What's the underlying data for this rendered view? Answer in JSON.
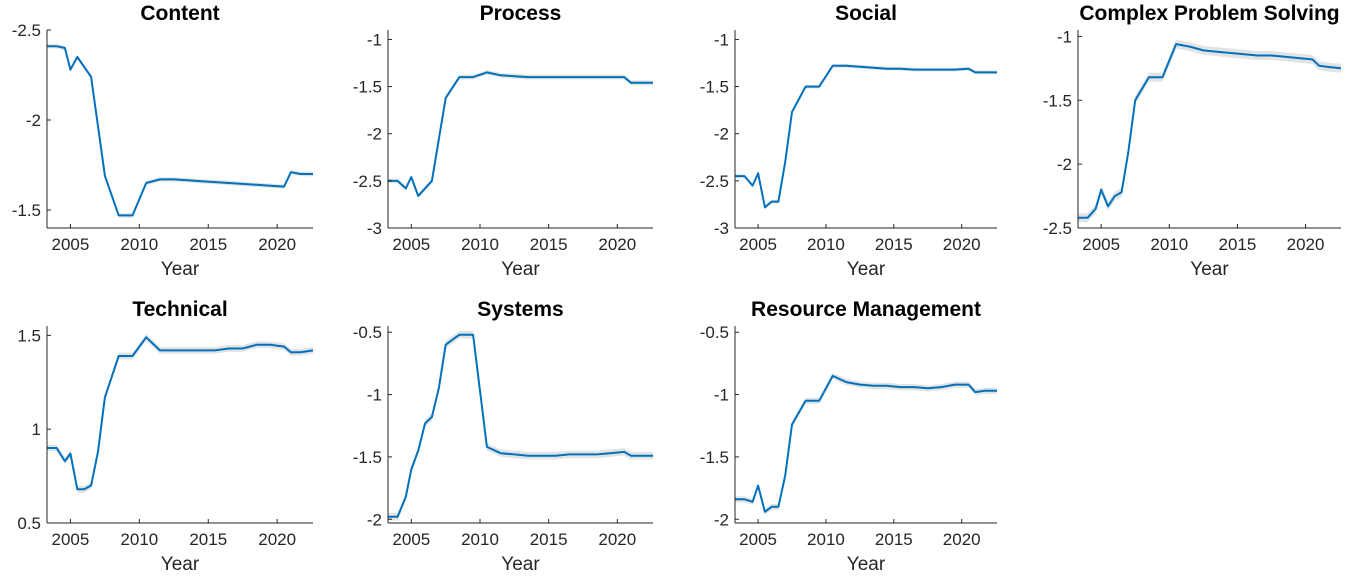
{
  "chart_data": [
    {
      "type": "line",
      "title": "Content",
      "xlabel": "Year",
      "ylabel": "",
      "ylim": [
        -2.5,
        -1.4
      ],
      "yticks": [
        -2.5,
        -2,
        -1.5
      ],
      "y_reversed": true,
      "xlim": [
        2003.3,
        2022.6
      ],
      "xticks": [
        2005,
        2010,
        2015,
        2020
      ],
      "grid": false,
      "series": [
        {
          "color": "#0072BD",
          "x": [
            2003.3,
            2004,
            2004.6,
            2005,
            2005.5,
            2006.5,
            2007.5,
            2008.5,
            2009.5,
            2010.5,
            2011.5,
            2012.5,
            2013.5,
            2014.5,
            2015.5,
            2016.5,
            2017.5,
            2018.5,
            2019.5,
            2020.5,
            2021,
            2021.7,
            2022.6
          ],
          "y": [
            -2.41,
            -2.41,
            -2.4,
            -2.28,
            -2.35,
            -2.24,
            -1.69,
            -1.47,
            -1.47,
            -1.65,
            -1.67,
            -1.67,
            -1.665,
            -1.66,
            -1.655,
            -1.65,
            -1.645,
            -1.64,
            -1.635,
            -1.63,
            -1.71,
            -1.7,
            -1.7
          ],
          "band": 0.012
        }
      ]
    },
    {
      "type": "line",
      "title": "Process",
      "xlabel": "Year",
      "ylabel": "",
      "ylim": [
        -3,
        -0.9
      ],
      "yticks": [
        -3,
        -2.5,
        -2,
        -1.5,
        -1
      ],
      "y_reversed": false,
      "xlim": [
        2003.3,
        2022.6
      ],
      "xticks": [
        2005,
        2010,
        2015,
        2020
      ],
      "grid": false,
      "series": [
        {
          "color": "#0072BD",
          "x": [
            2003.3,
            2004,
            2004.6,
            2005,
            2005.5,
            2006.5,
            2007.5,
            2008.5,
            2009.5,
            2010.5,
            2011.5,
            2012.5,
            2013.5,
            2014.5,
            2015.5,
            2016.5,
            2017.5,
            2018.5,
            2019.5,
            2020.5,
            2021,
            2021.7,
            2022.6
          ],
          "y": [
            -2.5,
            -2.5,
            -2.58,
            -2.46,
            -2.66,
            -2.5,
            -1.62,
            -1.4,
            -1.4,
            -1.35,
            -1.38,
            -1.39,
            -1.4,
            -1.4,
            -1.4,
            -1.4,
            -1.4,
            -1.4,
            -1.4,
            -1.4,
            -1.46,
            -1.46,
            -1.46
          ],
          "band": 0.025
        }
      ]
    },
    {
      "type": "line",
      "title": "Social",
      "xlabel": "Year",
      "ylabel": "",
      "ylim": [
        -3,
        -0.9
      ],
      "yticks": [
        -3,
        -2.5,
        -2,
        -1.5,
        -1
      ],
      "y_reversed": false,
      "xlim": [
        2003.3,
        2022.6
      ],
      "xticks": [
        2005,
        2010,
        2015,
        2020
      ],
      "grid": false,
      "series": [
        {
          "color": "#0072BD",
          "x": [
            2003.3,
            2004,
            2004.6,
            2005,
            2005.5,
            2006,
            2006.5,
            2007,
            2007.5,
            2008.5,
            2009.5,
            2010.5,
            2011.5,
            2012.5,
            2013.5,
            2014.5,
            2015.5,
            2016.5,
            2017.5,
            2018.5,
            2019.5,
            2020.5,
            2021,
            2021.7,
            2022.6
          ],
          "y": [
            -2.45,
            -2.45,
            -2.55,
            -2.42,
            -2.78,
            -2.72,
            -2.72,
            -2.3,
            -1.77,
            -1.5,
            -1.5,
            -1.28,
            -1.28,
            -1.29,
            -1.3,
            -1.31,
            -1.31,
            -1.32,
            -1.32,
            -1.32,
            -1.32,
            -1.31,
            -1.35,
            -1.35,
            -1.35
          ],
          "band": 0.02
        }
      ]
    },
    {
      "type": "line",
      "title": "Complex Problem Solving",
      "xlabel": "Year",
      "ylabel": "",
      "ylim": [
        -2.5,
        -0.95
      ],
      "yticks": [
        -2.5,
        -2,
        -1.5,
        -1
      ],
      "y_reversed": false,
      "xlim": [
        2003.3,
        2022.6
      ],
      "xticks": [
        2005,
        2010,
        2015,
        2020
      ],
      "grid": false,
      "series": [
        {
          "color": "#0072BD",
          "x": [
            2003.3,
            2004,
            2004.6,
            2005,
            2005.5,
            2006,
            2006.5,
            2007,
            2007.5,
            2008.5,
            2009.5,
            2010.5,
            2011.5,
            2012.5,
            2013.5,
            2014.5,
            2015.5,
            2016.5,
            2017.5,
            2018.5,
            2019.5,
            2020.5,
            2021,
            2021.7,
            2022.6
          ],
          "y": [
            -2.42,
            -2.42,
            -2.35,
            -2.2,
            -2.33,
            -2.25,
            -2.22,
            -1.9,
            -1.5,
            -1.32,
            -1.32,
            -1.06,
            -1.08,
            -1.11,
            -1.12,
            -1.13,
            -1.14,
            -1.15,
            -1.15,
            -1.16,
            -1.17,
            -1.18,
            -1.23,
            -1.24,
            -1.25
          ],
          "band": 0.035
        }
      ]
    },
    {
      "type": "line",
      "title": "Technical",
      "xlabel": "Year",
      "ylabel": "",
      "ylim": [
        0.5,
        1.55
      ],
      "yticks": [
        0.5,
        1,
        1.5
      ],
      "y_reversed": false,
      "xlim": [
        2003.3,
        2022.6
      ],
      "xticks": [
        2005,
        2010,
        2015,
        2020
      ],
      "grid": false,
      "series": [
        {
          "color": "#0072BD",
          "x": [
            2003.3,
            2004,
            2004.6,
            2005,
            2005.5,
            2006,
            2006.5,
            2007,
            2007.5,
            2008.5,
            2009.5,
            2010.5,
            2011.5,
            2012.5,
            2013.5,
            2014.5,
            2015.5,
            2016.5,
            2017.5,
            2018.5,
            2019.5,
            2020.5,
            2021,
            2021.7,
            2022.6
          ],
          "y": [
            0.9,
            0.9,
            0.83,
            0.87,
            0.68,
            0.68,
            0.7,
            0.88,
            1.17,
            1.39,
            1.39,
            1.49,
            1.42,
            1.42,
            1.42,
            1.42,
            1.42,
            1.43,
            1.43,
            1.45,
            1.45,
            1.44,
            1.41,
            1.41,
            1.42
          ],
          "band": 0.018
        }
      ]
    },
    {
      "type": "line",
      "title": "Systems",
      "xlabel": "Year",
      "ylabel": "",
      "ylim": [
        -2.03,
        -0.45
      ],
      "yticks": [
        -2,
        -1.5,
        -1,
        -0.5
      ],
      "y_reversed": false,
      "xlim": [
        2003.3,
        2022.6
      ],
      "xticks": [
        2005,
        2010,
        2015,
        2020
      ],
      "grid": false,
      "series": [
        {
          "color": "#0072BD",
          "x": [
            2003.3,
            2004,
            2004.6,
            2005,
            2005.5,
            2006,
            2006.5,
            2007,
            2007.5,
            2008.5,
            2009.5,
            2010.5,
            2011.5,
            2012.5,
            2013.5,
            2014.5,
            2015.5,
            2016.5,
            2017.5,
            2018.5,
            2019.5,
            2020.5,
            2021,
            2021.7,
            2022.6
          ],
          "y": [
            -1.98,
            -1.98,
            -1.82,
            -1.6,
            -1.45,
            -1.23,
            -1.18,
            -0.95,
            -0.6,
            -0.52,
            -0.52,
            -1.42,
            -1.47,
            -1.48,
            -1.49,
            -1.49,
            -1.49,
            -1.48,
            -1.48,
            -1.48,
            -1.47,
            -1.46,
            -1.49,
            -1.49,
            -1.49
          ],
          "band": 0.03
        }
      ]
    },
    {
      "type": "line",
      "title": "Resource Management",
      "xlabel": "Year",
      "ylabel": "",
      "ylim": [
        -2.03,
        -0.45
      ],
      "yticks": [
        -2,
        -1.5,
        -1,
        -0.5
      ],
      "y_reversed": false,
      "xlim": [
        2003.3,
        2022.6
      ],
      "xticks": [
        2005,
        2010,
        2015,
        2020
      ],
      "grid": false,
      "series": [
        {
          "color": "#0072BD",
          "x": [
            2003.3,
            2004,
            2004.6,
            2005,
            2005.5,
            2006,
            2006.5,
            2007,
            2007.5,
            2008.5,
            2009.5,
            2010.5,
            2011.5,
            2012.5,
            2013.5,
            2014.5,
            2015.5,
            2016.5,
            2017.5,
            2018.5,
            2019.5,
            2020.5,
            2021,
            2021.7,
            2022.6
          ],
          "y": [
            -1.84,
            -1.84,
            -1.86,
            -1.73,
            -1.94,
            -1.9,
            -1.9,
            -1.65,
            -1.24,
            -1.05,
            -1.05,
            -0.85,
            -0.9,
            -0.92,
            -0.93,
            -0.93,
            -0.94,
            -0.94,
            -0.95,
            -0.94,
            -0.92,
            -0.92,
            -0.98,
            -0.97,
            -0.97
          ],
          "band": 0.025
        }
      ]
    }
  ]
}
